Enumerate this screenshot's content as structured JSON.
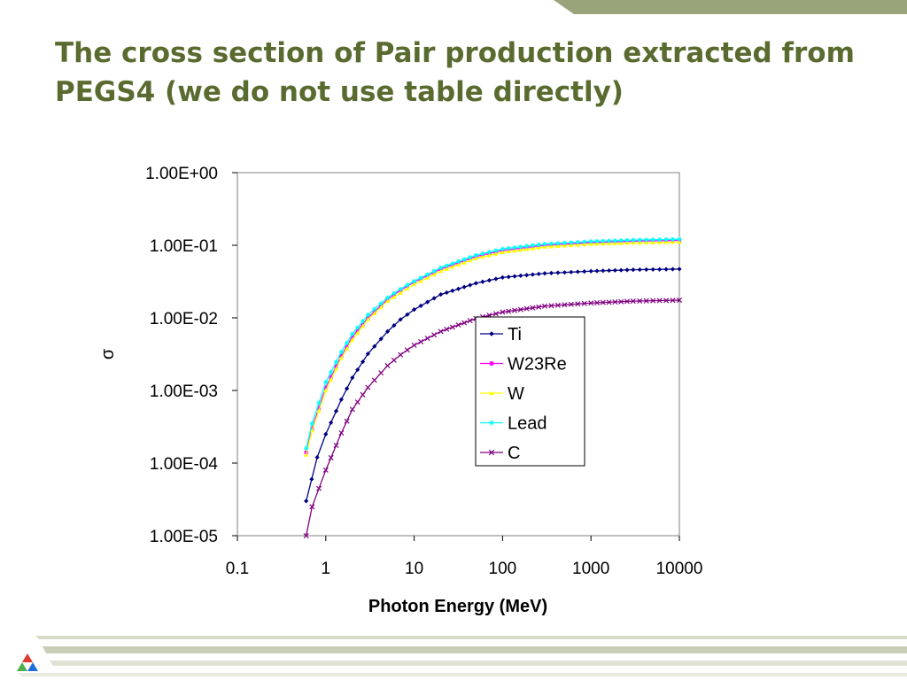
{
  "slide": {
    "title": "The cross section of Pair production extracted from PEGS4 (we do not use table directly)"
  },
  "colors": {
    "title": "#5a6b30",
    "accent_band": "#9aa47a"
  },
  "icons": {
    "logo": "argonne-triangle-logo"
  },
  "chart_data": {
    "type": "line",
    "title": "",
    "xlabel": "Photon Energy (MeV)",
    "ylabel": "σ",
    "x_scale": "log",
    "y_scale": "log",
    "xlim": [
      0.1,
      10000
    ],
    "ylim": [
      1e-05,
      1
    ],
    "x_ticks": [
      "0.1",
      "1",
      "10",
      "100",
      "1000",
      "10000"
    ],
    "y_ticks": [
      "1.00E-05",
      "1.00E-04",
      "1.00E-03",
      "1.00E-02",
      "1.00E-01",
      "1.00E+00"
    ],
    "legend_position": "right-center",
    "grid": false,
    "series": [
      {
        "name": "Ti",
        "color": "#000080",
        "marker": "diamond",
        "x": [
          0.6,
          0.8,
          1,
          1.5,
          2,
          3,
          5,
          7,
          10,
          20,
          50,
          100,
          300,
          1000,
          3000,
          10000
        ],
        "y": [
          3e-05,
          0.00012,
          0.00025,
          0.00075,
          0.0015,
          0.0032,
          0.0065,
          0.0095,
          0.013,
          0.021,
          0.03,
          0.036,
          0.041,
          0.044,
          0.046,
          0.047
        ]
      },
      {
        "name": "W23Re",
        "color": "#ff00ff",
        "marker": "square",
        "x": [
          0.6,
          0.7,
          1,
          1.5,
          2,
          3,
          5,
          7,
          10,
          20,
          50,
          100,
          300,
          1000,
          3000,
          10000
        ],
        "y": [
          0.00014,
          0.0003,
          0.0011,
          0.003,
          0.0055,
          0.01,
          0.018,
          0.024,
          0.031,
          0.047,
          0.07,
          0.085,
          0.1,
          0.109,
          0.114,
          0.117
        ]
      },
      {
        "name": "W",
        "color": "#ffff00",
        "marker": "triangle",
        "x": [
          0.6,
          0.7,
          1,
          1.5,
          2,
          3,
          5,
          7,
          10,
          20,
          50,
          100,
          300,
          1000,
          3000,
          10000
        ],
        "y": [
          0.00013,
          0.00028,
          0.001,
          0.0028,
          0.005,
          0.0095,
          0.017,
          0.022,
          0.029,
          0.044,
          0.066,
          0.08,
          0.095,
          0.104,
          0.108,
          0.111
        ]
      },
      {
        "name": "Lead",
        "color": "#00ffff",
        "marker": "star",
        "x": [
          0.6,
          0.7,
          1,
          1.5,
          2,
          3,
          5,
          7,
          10,
          20,
          50,
          100,
          300,
          1000,
          3000,
          10000
        ],
        "y": [
          0.00016,
          0.00035,
          0.0013,
          0.0034,
          0.006,
          0.011,
          0.019,
          0.025,
          0.032,
          0.049,
          0.073,
          0.089,
          0.104,
          0.113,
          0.118,
          0.121
        ]
      },
      {
        "name": "C",
        "color": "#800080",
        "marker": "x",
        "x": [
          0.6,
          0.7,
          1,
          1.5,
          2,
          3,
          5,
          7,
          10,
          20,
          50,
          100,
          300,
          1000,
          3000,
          10000
        ],
        "y": [
          1e-05,
          2.5e-05,
          8e-05,
          0.00026,
          0.00055,
          0.0011,
          0.0022,
          0.0031,
          0.0042,
          0.0065,
          0.0098,
          0.012,
          0.0145,
          0.016,
          0.017,
          0.0175
        ]
      }
    ]
  }
}
